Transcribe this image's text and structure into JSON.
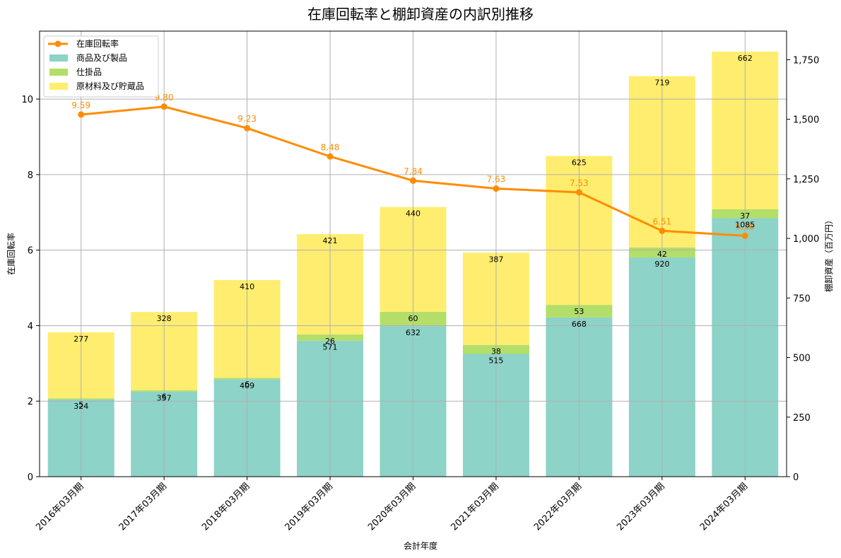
{
  "chart_data": {
    "type": "bar",
    "title": "在庫回転率と棚卸資産の内訳別推移",
    "xlabel": "会計年度",
    "ylabel_left": "在庫回転率",
    "ylabel_right": "棚卸資産（百万円）",
    "categories": [
      "2016年03月期",
      "2017年03月期",
      "2018年03月期",
      "2019年03月期",
      "2020年03月期",
      "2021年03月期",
      "2022年03月期",
      "2023年03月期",
      "2024年03月期"
    ],
    "stacked_series": [
      {
        "name": "商品及び製品",
        "color": "#8dd3c7",
        "values": [
          324,
          357,
          409,
          571,
          632,
          515,
          668,
          920,
          1085
        ]
      },
      {
        "name": "仕掛品",
        "color": "#b3de69",
        "values": [
          5,
          6,
          6,
          26,
          60,
          38,
          53,
          42,
          37
        ]
      },
      {
        "name": "原材料及び貯蔵品",
        "color": "#ffed6f",
        "values": [
          277,
          328,
          410,
          421,
          440,
          387,
          625,
          719,
          662
        ]
      }
    ],
    "line_series": {
      "name": "在庫回転率",
      "color": "#ff8c00",
      "values": [
        9.59,
        9.8,
        9.23,
        8.48,
        7.84,
        7.63,
        7.53,
        6.51,
        6.38
      ],
      "labels": [
        "9.59",
        "9.80",
        "9.23",
        "8.48",
        "7.84",
        "7.63",
        "7.53",
        "6.51",
        "6.38"
      ]
    },
    "ylim_left": [
      0,
      11.8
    ],
    "yticks_left": [
      0,
      2,
      4,
      6,
      8,
      10
    ],
    "ylim_right": [
      0,
      1870
    ],
    "yticks_right": [
      0,
      250,
      500,
      750,
      1000,
      1250,
      1500,
      1750
    ],
    "yticks_right_labels": [
      "0",
      "250",
      "500",
      "750",
      "1,000",
      "1,250",
      "1,500",
      "1,750"
    ],
    "grid": true,
    "legend": "top-left"
  }
}
